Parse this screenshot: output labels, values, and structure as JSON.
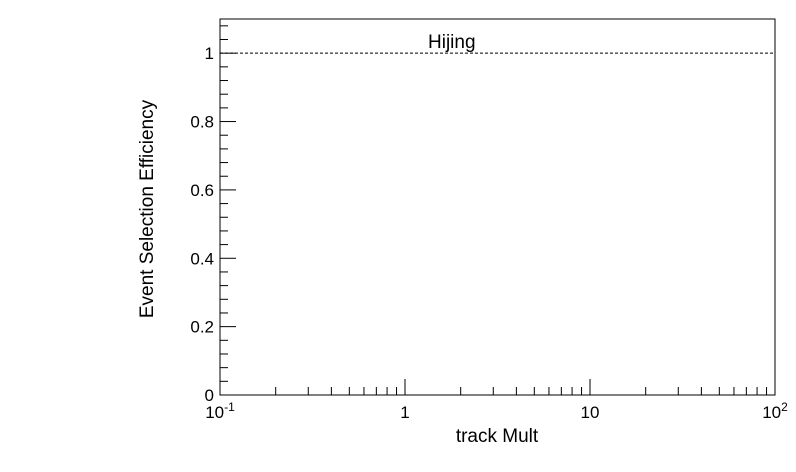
{
  "chart_data": {
    "type": "line",
    "title": "",
    "xlabel": "track Mult",
    "ylabel": "Event Selection Efficiency",
    "xscale": "log",
    "xlim": [
      0.1,
      100
    ],
    "ylim": [
      0,
      1.1
    ],
    "x_major_tick_labels": [
      {
        "base": "10",
        "exp": "-1",
        "value": 0.1
      },
      {
        "text": "1",
        "value": 1
      },
      {
        "text": "10",
        "value": 10
      },
      {
        "base": "10",
        "exp": "2",
        "value": 100
      }
    ],
    "y_major_tick_labels": [
      "0",
      "0.2",
      "0.4",
      "0.6",
      "0.8",
      "1"
    ],
    "y_major_tick_values": [
      0,
      0.2,
      0.4,
      0.6,
      0.8,
      1.0
    ],
    "reference_line": {
      "y": 1.0,
      "style": "dashed"
    },
    "annotation": "Hijing",
    "grid": false,
    "series": []
  }
}
